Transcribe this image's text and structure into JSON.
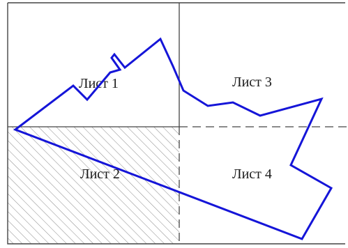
{
  "sheets": [
    {
      "label": "Лист 1",
      "hatched": false
    },
    {
      "label": "Лист 2",
      "hatched": true
    },
    {
      "label": "Лист 3",
      "hatched": false
    },
    {
      "label": "Лист 4",
      "hatched": false
    }
  ],
  "colors": {
    "background": "#ffffff",
    "frame": "#444444",
    "hatch": "#8a8a8a",
    "contour": "#1515d8",
    "text": "#1a1a1a"
  }
}
